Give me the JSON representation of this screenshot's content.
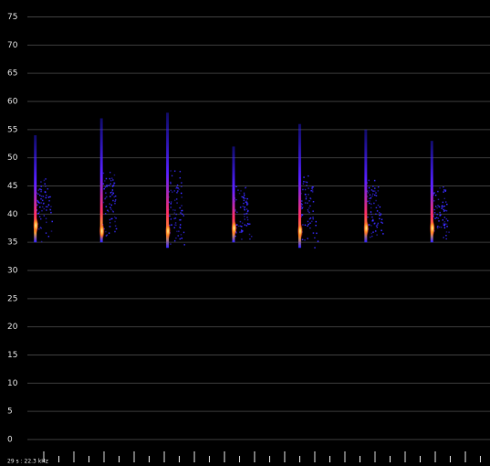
{
  "chart_data": {
    "type": "spectrogram",
    "annotation": "29 s : 22.3 kHz",
    "ylim": [
      0,
      78
    ],
    "yticks": [
      0,
      5,
      10,
      15,
      20,
      25,
      30,
      35,
      40,
      45,
      50,
      55,
      60,
      65,
      70,
      75
    ],
    "grid": true,
    "categories": [
      null,
      null,
      null,
      null,
      null,
      null,
      null
    ],
    "high_freq": [
      54,
      57,
      58,
      52,
      56,
      55,
      53
    ],
    "low_freq": [
      35,
      35,
      34,
      35,
      34,
      35,
      35
    ],
    "peak_freq": [
      38,
      37,
      37,
      37.5,
      37,
      37.5,
      37.5
    ],
    "color": "#3a2cff"
  }
}
